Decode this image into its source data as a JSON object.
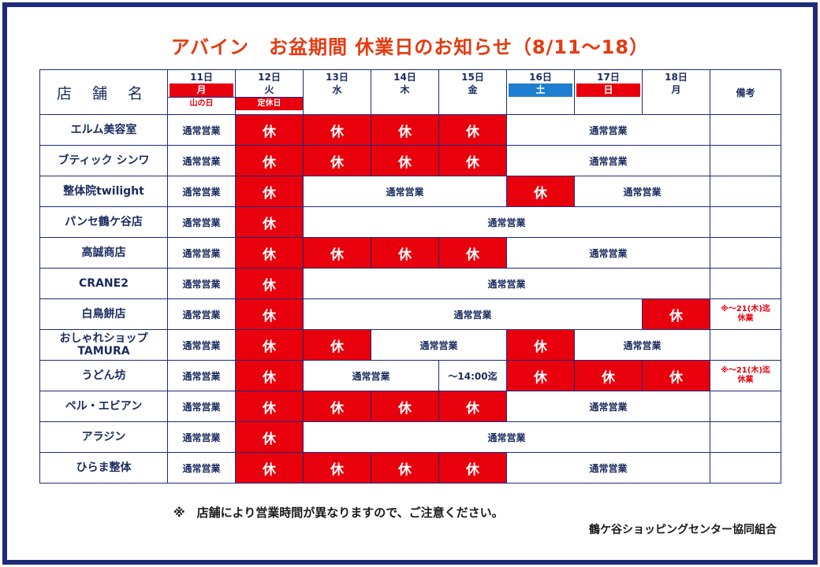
{
  "title": "アバイン　お盆期間 休業日のお知らせ（8/11〜18）",
  "header": {
    "store_label": "店 舗 名",
    "notes_label": "備考",
    "days": [
      {
        "date": "11日",
        "dow": "月",
        "holiday": "山の日"
      },
      {
        "date": "12日",
        "dow": "火",
        "holiday": "定休日"
      },
      {
        "date": "13日",
        "dow": "水",
        "holiday": ""
      },
      {
        "date": "14日",
        "dow": "木",
        "holiday": ""
      },
      {
        "date": "15日",
        "dow": "金",
        "holiday": ""
      },
      {
        "date": "16日",
        "dow": "土",
        "holiday": ""
      },
      {
        "date": "17日",
        "dow": "日",
        "holiday": ""
      },
      {
        "date": "18日",
        "dow": "月",
        "holiday": ""
      }
    ]
  },
  "labels": {
    "open": "通常営業",
    "closed": "休",
    "until_1400": "〜14:00迄",
    "extended_closure": "※〜21(木)迄\n休業"
  },
  "colors": {
    "closed_bg": "#e8000d",
    "saturday": "#1e7fd0",
    "sunday": "#e8000d",
    "border": "#1f2a7a",
    "title": "#e63a10"
  },
  "stores": [
    {
      "name": "エルム美容室",
      "cells": [
        {
          "t": "open",
          "span": 1
        },
        {
          "t": "closed",
          "span": 1
        },
        {
          "t": "closed",
          "span": 1
        },
        {
          "t": "closed",
          "span": 1
        },
        {
          "t": "closed",
          "span": 1
        },
        {
          "t": "open",
          "span": 3
        }
      ],
      "note": ""
    },
    {
      "name": "ブティック シンワ",
      "cells": [
        {
          "t": "open",
          "span": 1
        },
        {
          "t": "closed",
          "span": 1
        },
        {
          "t": "closed",
          "span": 1
        },
        {
          "t": "closed",
          "span": 1
        },
        {
          "t": "closed",
          "span": 1
        },
        {
          "t": "open",
          "span": 3
        }
      ],
      "note": ""
    },
    {
      "name": "整体院twilight",
      "cells": [
        {
          "t": "open",
          "span": 1
        },
        {
          "t": "closed",
          "span": 1
        },
        {
          "t": "open",
          "span": 3
        },
        {
          "t": "closed",
          "span": 1
        },
        {
          "t": "open",
          "span": 2
        }
      ],
      "note": ""
    },
    {
      "name": "パンセ鶴ケ谷店",
      "cells": [
        {
          "t": "open",
          "span": 1
        },
        {
          "t": "closed",
          "span": 1
        },
        {
          "t": "open",
          "span": 6
        }
      ],
      "note": ""
    },
    {
      "name": "高誠商店",
      "cells": [
        {
          "t": "open",
          "span": 1
        },
        {
          "t": "closed",
          "span": 1
        },
        {
          "t": "closed",
          "span": 1
        },
        {
          "t": "closed",
          "span": 1
        },
        {
          "t": "closed",
          "span": 1
        },
        {
          "t": "open",
          "span": 3
        }
      ],
      "note": ""
    },
    {
      "name": "CRANE2",
      "cells": [
        {
          "t": "open",
          "span": 1
        },
        {
          "t": "closed",
          "span": 1
        },
        {
          "t": "open",
          "span": 6
        }
      ],
      "note": ""
    },
    {
      "name": "白鳥餅店",
      "cells": [
        {
          "t": "open",
          "span": 1
        },
        {
          "t": "closed",
          "span": 1
        },
        {
          "t": "open",
          "span": 5
        },
        {
          "t": "closed",
          "span": 1
        }
      ],
      "note": "※〜21(木)迄\n休業"
    },
    {
      "name": "おしゃれショップ\nTAMURA",
      "cells": [
        {
          "t": "open",
          "span": 1
        },
        {
          "t": "closed",
          "span": 1
        },
        {
          "t": "closed",
          "span": 1
        },
        {
          "t": "open",
          "span": 2
        },
        {
          "t": "closed",
          "span": 1
        },
        {
          "t": "open",
          "span": 2
        }
      ],
      "note": ""
    },
    {
      "name": "うどん坊",
      "cells": [
        {
          "t": "open",
          "span": 1
        },
        {
          "t": "closed",
          "span": 1
        },
        {
          "t": "open",
          "span": 2
        },
        {
          "t": "until_1400",
          "span": 1
        },
        {
          "t": "closed",
          "span": 1
        },
        {
          "t": "closed",
          "span": 1
        },
        {
          "t": "closed",
          "span": 1
        }
      ],
      "note": "※〜21(木)迄\n休業"
    },
    {
      "name": "ペル・エビアン",
      "cells": [
        {
          "t": "open",
          "span": 1
        },
        {
          "t": "closed",
          "span": 1
        },
        {
          "t": "closed",
          "span": 1
        },
        {
          "t": "closed",
          "span": 1
        },
        {
          "t": "closed",
          "span": 1
        },
        {
          "t": "open",
          "span": 3
        }
      ],
      "note": ""
    },
    {
      "name": "アラジン",
      "cells": [
        {
          "t": "open",
          "span": 1
        },
        {
          "t": "closed",
          "span": 1
        },
        {
          "t": "open",
          "span": 6
        }
      ],
      "note": ""
    },
    {
      "name": "ひらま整体",
      "cells": [
        {
          "t": "open",
          "span": 1
        },
        {
          "t": "closed",
          "span": 1
        },
        {
          "t": "closed",
          "span": 1
        },
        {
          "t": "closed",
          "span": 1
        },
        {
          "t": "closed",
          "span": 1
        },
        {
          "t": "open",
          "span": 3
        }
      ],
      "note": ""
    }
  ],
  "footnote": "※　店舗により営業時間が異なりますので、ご注意ください。",
  "organization": "鶴ケ谷ショッピングセンター協同組合"
}
